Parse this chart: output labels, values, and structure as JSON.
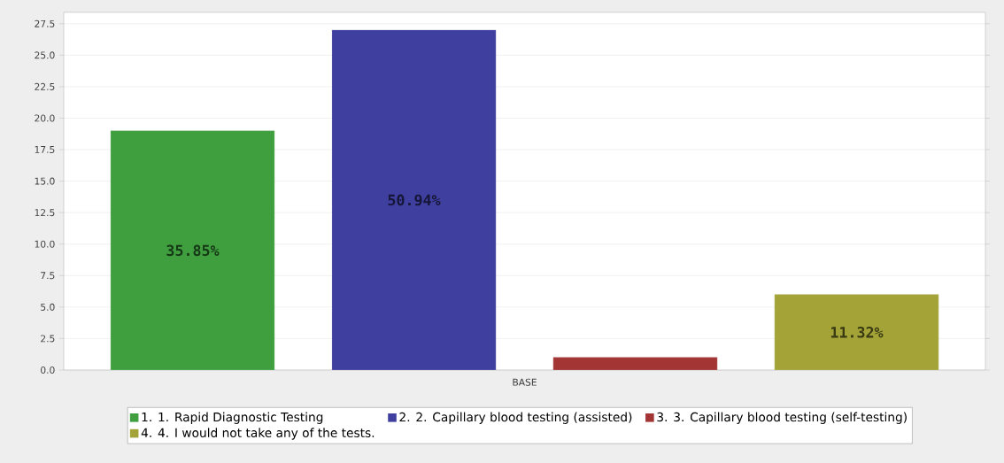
{
  "chart_data": {
    "type": "bar",
    "categories": [
      "BASE"
    ],
    "series": [
      {
        "name": "1. 1. Rapid Diagnostic Testing",
        "color": "#3f9f3f",
        "values": [
          19
        ]
      },
      {
        "name": "2. 2. Capillary blood testing (assisted)",
        "color": "#3f3fa0",
        "values": [
          27
        ]
      },
      {
        "name": "3. 3. Capillary blood testing (self-testing)",
        "color": "#a33535",
        "values": [
          1
        ]
      },
      {
        "name": "4. 4. I would not take any of the tests.",
        "color": "#a3a337",
        "values": [
          6
        ]
      }
    ],
    "annotations": [
      "35.85%",
      "50.94%",
      "11.32%"
    ],
    "ylim": [
      0,
      28.4
    ],
    "yticks": [
      {
        "value": 0,
        "label": "0.0"
      },
      2.5,
      {
        "value": 5,
        "label": "5.0"
      },
      7.5,
      {
        "value": 10,
        "label": "10.0"
      },
      12.5,
      {
        "value": 15,
        "label": "15.0"
      },
      17.5,
      {
        "value": 20,
        "label": "20.0"
      },
      22.5,
      {
        "value": 25,
        "label": "25.0"
      },
      27.5
    ],
    "grid": "y",
    "legend": "bottom"
  }
}
